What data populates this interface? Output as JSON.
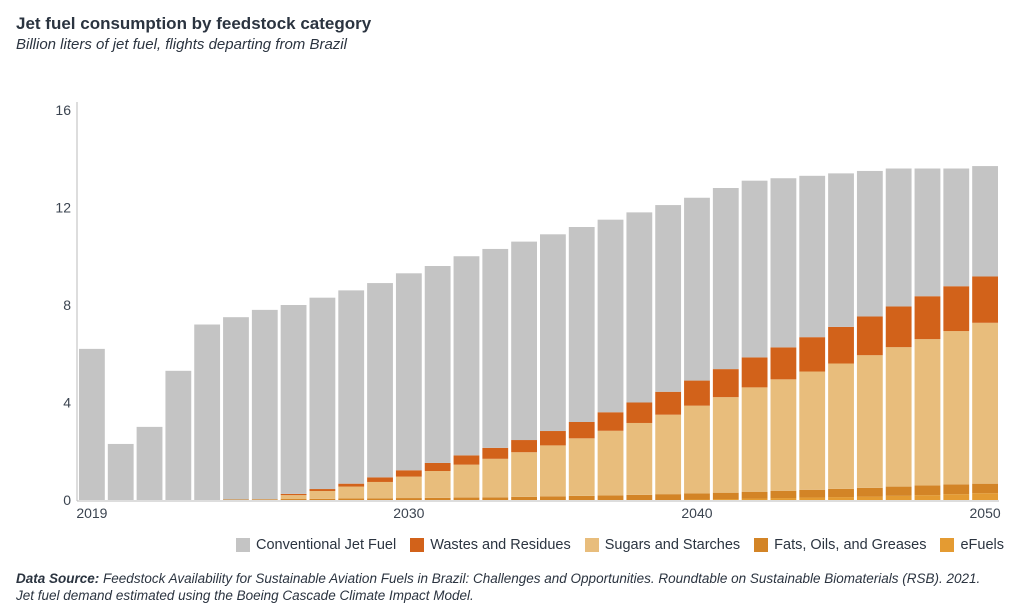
{
  "chart_data": {
    "type": "bar",
    "stacked": true,
    "title": "Jet fuel consumption by feedstock category",
    "subtitle": "Billion liters of jet fuel, flights departing from Brazil",
    "xlabel": "",
    "ylabel": "",
    "ylim": [
      0,
      16
    ],
    "yticks": [
      "0",
      "4",
      "8",
      "12",
      "16"
    ],
    "xtick_labels": [
      "2019",
      "2030",
      "2040",
      "2050"
    ],
    "grid": false,
    "legend_position": "bottom-right",
    "categories": [
      2019,
      2020,
      2021,
      2022,
      2023,
      2024,
      2025,
      2026,
      2027,
      2028,
      2029,
      2030,
      2031,
      2032,
      2033,
      2034,
      2035,
      2036,
      2037,
      2038,
      2039,
      2040,
      2041,
      2042,
      2043,
      2044,
      2045,
      2046,
      2047,
      2048,
      2049,
      2050
    ],
    "series": [
      {
        "name": "eFuels",
        "color": "#e49b32",
        "values": [
          0,
          0,
          0,
          0,
          0,
          0,
          0,
          0,
          0,
          0,
          0,
          0,
          0,
          0,
          0,
          0,
          0,
          0,
          0,
          0,
          0,
          0.02,
          0.04,
          0.06,
          0.08,
          0.1,
          0.12,
          0.14,
          0.17,
          0.2,
          0.24,
          0.28
        ]
      },
      {
        "name": "Fats, Oils, and Greases",
        "color": "#d38426",
        "values": [
          0,
          0,
          0,
          0,
          0,
          0.02,
          0.03,
          0.04,
          0.05,
          0.06,
          0.07,
          0.08,
          0.09,
          0.1,
          0.11,
          0.13,
          0.15,
          0.17,
          0.19,
          0.21,
          0.24,
          0.25,
          0.26,
          0.28,
          0.3,
          0.32,
          0.34,
          0.36,
          0.38,
          0.4,
          0.4,
          0.39
        ]
      },
      {
        "name": "Sugars and Starches",
        "color": "#e8bd7c",
        "values": [
          0,
          0,
          0,
          0,
          0,
          0,
          0,
          0.16,
          0.32,
          0.49,
          0.67,
          0.88,
          1.1,
          1.35,
          1.58,
          1.83,
          2.09,
          2.36,
          2.65,
          2.95,
          3.26,
          3.6,
          3.92,
          4.28,
          4.57,
          4.85,
          5.14,
          5.44,
          5.72,
          6.0,
          6.29,
          6.6
        ]
      },
      {
        "name": "Wastes and Residues",
        "color": "#d2621a",
        "values": [
          0,
          0,
          0,
          0,
          0,
          0,
          0,
          0.05,
          0.08,
          0.12,
          0.19,
          0.26,
          0.33,
          0.38,
          0.45,
          0.5,
          0.59,
          0.67,
          0.76,
          0.84,
          0.94,
          1.03,
          1.15,
          1.23,
          1.31,
          1.41,
          1.5,
          1.59,
          1.67,
          1.76,
          1.84,
          1.9
        ]
      },
      {
        "name": "Conventional Jet Fuel",
        "color": "#c4c4c4",
        "values": [
          6.2,
          2.3,
          3.0,
          5.3,
          7.2,
          7.48,
          7.77,
          7.75,
          7.85,
          7.93,
          7.97,
          8.08,
          8.08,
          8.17,
          8.16,
          8.14,
          8.07,
          8.0,
          7.9,
          7.8,
          7.66,
          7.5,
          7.43,
          7.25,
          6.94,
          6.62,
          6.3,
          5.97,
          5.66,
          5.24,
          4.83,
          4.53
        ]
      }
    ],
    "legend_order": [
      "Conventional Jet Fuel",
      "Wastes and Residues",
      "Sugars and Starches",
      "Fats, Oils, and Greases",
      "eFuels"
    ]
  },
  "source": {
    "label": "Data Source:",
    "text": "Feedstock Availability for Sustainable Aviation Fuels in Brazil: Challenges and Opportunities. Roundtable on Sustainable Biomaterials (RSB). 2021. Jet fuel demand estimated using the Boeing Cascade Climate Impact Model."
  }
}
